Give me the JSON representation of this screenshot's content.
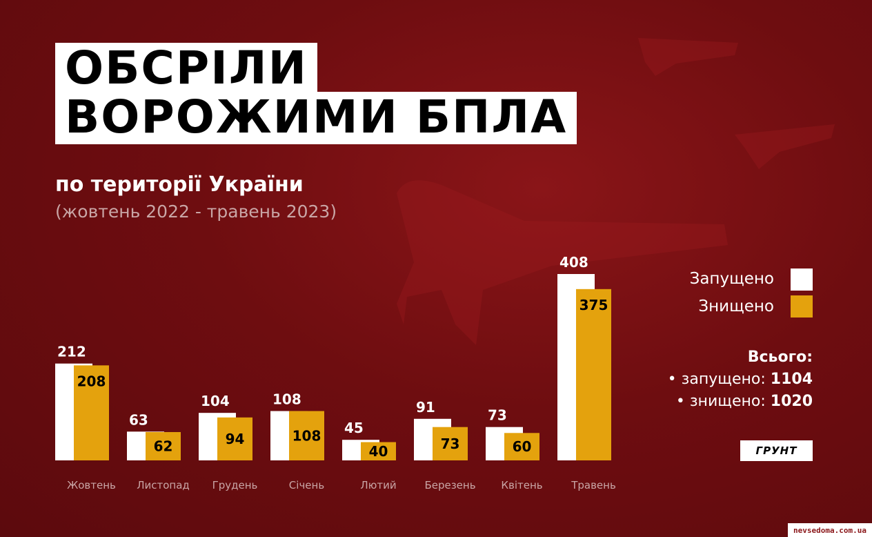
{
  "title": {
    "line1": "ОБСРІЛИ",
    "line2": "ВОРОЖИМИ БПЛА"
  },
  "subtitle": "по території України",
  "period": "(жовтень 2022 - травень 2023)",
  "legend": {
    "launched": "Запущено",
    "destroyed": "Знищено"
  },
  "colors": {
    "launched": "#ffffff",
    "destroyed": "#e4a20d",
    "background": "#6e0d10"
  },
  "totals": {
    "heading": "Всього:",
    "launched_label": "запущено:",
    "launched_value": "1104",
    "destroyed_label": "знищено:",
    "destroyed_value": "1020"
  },
  "logo": "ГРУНТ",
  "watermark": "nevsedoma.com.ua",
  "chart_data": {
    "type": "bar",
    "categories": [
      "Жовтень",
      "Листопад",
      "Грудень",
      "Січень",
      "Лютий",
      "Березень",
      "Квітень",
      "Травень"
    ],
    "series": [
      {
        "name": "Запущено",
        "values": [
          212,
          63,
          104,
          108,
          45,
          91,
          73,
          408
        ]
      },
      {
        "name": "Знищено",
        "values": [
          208,
          62,
          94,
          108,
          40,
          73,
          60,
          375
        ]
      }
    ],
    "ylim": [
      0,
      408
    ],
    "grid": false,
    "legend_position": "right"
  }
}
